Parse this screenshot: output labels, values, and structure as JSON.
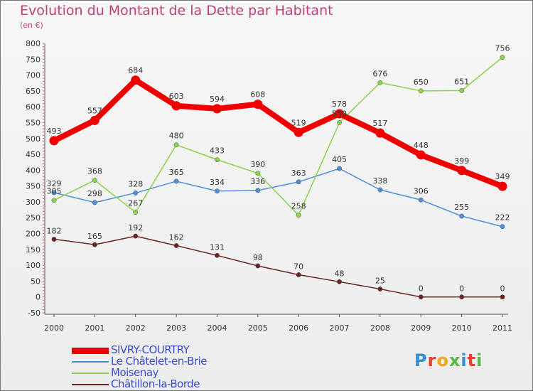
{
  "title": "Evolution du Montant de la Dette par Habitant",
  "subtitle": "(en €)",
  "logo": {
    "text": "Proxiti",
    "colors": [
      "#2f8fd8",
      "#e8402f",
      "#f2a71b",
      "#58b847",
      "#2f8fd8",
      "#e8402f",
      "#58b847"
    ]
  },
  "chart_data": {
    "type": "line",
    "title": "Evolution du Montant de la Dette par Habitant",
    "ylabel": "(en €)",
    "xlabel": "",
    "x": [
      "2000",
      "2001",
      "2002",
      "2003",
      "2004",
      "2005",
      "2006",
      "2007",
      "2008",
      "2009",
      "2010",
      "2011"
    ],
    "ylim": [
      -50,
      800
    ],
    "yticks": [
      -50,
      0,
      50,
      100,
      150,
      200,
      250,
      300,
      350,
      400,
      450,
      500,
      550,
      600,
      650,
      700,
      750,
      800
    ],
    "grid": false,
    "legend_position": "bottom-left",
    "series": [
      {
        "name": "SIVRY-COURTRY",
        "color": "#ee0000",
        "width": 8,
        "values": [
          493,
          557,
          684,
          603,
          594,
          608,
          519,
          578,
          517,
          448,
          399,
          349
        ]
      },
      {
        "name": "Le Châtelet-en-Brie",
        "color": "#4f8ed8",
        "width": 1.5,
        "values": [
          329,
          298,
          328,
          365,
          334,
          336,
          363,
          405,
          338,
          306,
          255,
          222
        ]
      },
      {
        "name": "Moisenay",
        "color": "#8bd34a",
        "width": 1.5,
        "values": [
          305,
          368,
          267,
          480,
          433,
          390,
          258,
          550,
          676,
          650,
          651,
          756
        ]
      },
      {
        "name": "Châtillon-la-Borde",
        "color": "#6b2323",
        "width": 1.5,
        "values": [
          182,
          165,
          192,
          162,
          131,
          98,
          70,
          48,
          25,
          0,
          0,
          0
        ]
      }
    ]
  }
}
